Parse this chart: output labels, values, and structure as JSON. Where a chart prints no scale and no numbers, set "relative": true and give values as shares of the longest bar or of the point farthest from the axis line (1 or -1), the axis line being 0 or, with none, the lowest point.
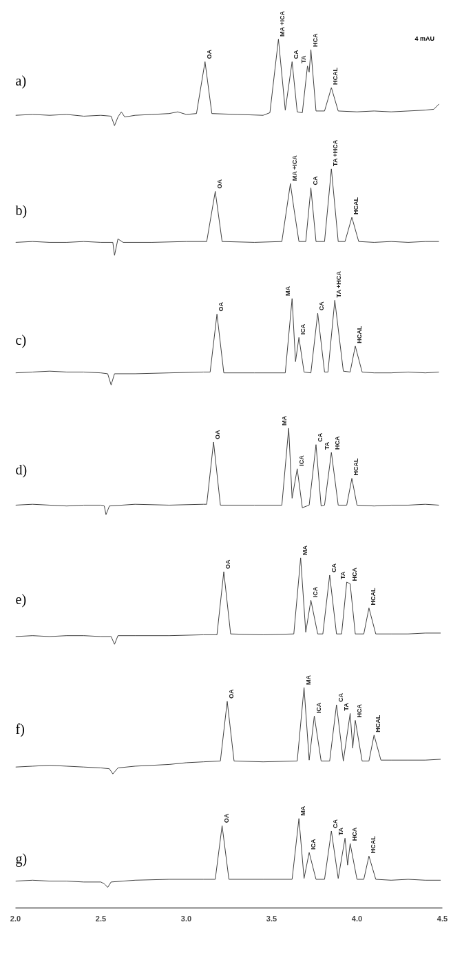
{
  "chart_data": [
    {
      "type": "line",
      "title": "a)",
      "relative": true,
      "color": "#404040",
      "xlim": [
        2.0,
        4.5
      ],
      "tick_labels": false,
      "x": [
        2.0,
        2.1,
        2.2,
        2.3,
        2.4,
        2.5,
        2.56,
        2.58,
        2.6,
        2.62,
        2.64,
        2.7,
        2.8,
        2.9,
        2.95,
        3.0,
        3.06,
        3.11,
        3.15,
        3.3,
        3.45,
        3.49,
        3.54,
        3.58,
        3.62,
        3.65,
        3.68,
        3.71,
        3.72,
        3.73,
        3.76,
        3.81,
        3.85,
        3.89,
        4.0,
        4.1,
        4.2,
        4.3,
        4.4,
        4.45,
        4.48
      ],
      "values": [
        0.12,
        0.13,
        0.12,
        0.13,
        0.11,
        0.12,
        0.11,
        0.0,
        0.1,
        0.16,
        0.1,
        0.12,
        0.13,
        0.14,
        0.16,
        0.13,
        0.14,
        0.74,
        0.14,
        0.13,
        0.12,
        0.15,
        1.0,
        0.18,
        0.74,
        0.16,
        0.15,
        0.69,
        0.62,
        0.88,
        0.17,
        0.17,
        0.44,
        0.17,
        0.16,
        0.17,
        0.16,
        0.17,
        0.18,
        0.19,
        0.25
      ],
      "annotations": [
        {
          "text": "OA",
          "x": 3.11,
          "y": 0.74
        },
        {
          "text": "MA +ICA",
          "x": 3.54,
          "y": 1.0
        },
        {
          "text": "CA",
          "x": 3.62,
          "y": 0.74
        },
        {
          "text": "TA",
          "x": 3.71,
          "y": 0.69
        },
        {
          "text": "HCA",
          "x": 3.73,
          "y": 0.88
        },
        {
          "text": "HCAL",
          "x": 3.85,
          "y": 0.44
        },
        "4 mAU"
      ]
    },
    {
      "type": "line",
      "title": "b)",
      "relative": true,
      "color": "#404040",
      "xlim": [
        2.0,
        4.5
      ],
      "tick_labels": false,
      "x": [
        2.0,
        2.1,
        2.2,
        2.3,
        2.4,
        2.5,
        2.57,
        2.58,
        2.6,
        2.63,
        2.8,
        3.0,
        3.12,
        3.17,
        3.21,
        3.4,
        3.56,
        3.61,
        3.63,
        3.66,
        3.7,
        3.73,
        3.76,
        3.81,
        3.85,
        3.89,
        3.93,
        3.97,
        4.01,
        4.1,
        4.2,
        4.3,
        4.4,
        4.48
      ],
      "values": [
        0.15,
        0.16,
        0.15,
        0.15,
        0.16,
        0.15,
        0.15,
        0.0,
        0.19,
        0.15,
        0.15,
        0.16,
        0.16,
        0.74,
        0.16,
        0.15,
        0.16,
        0.83,
        0.55,
        0.16,
        0.16,
        0.78,
        0.16,
        0.16,
        1.0,
        0.16,
        0.16,
        0.44,
        0.16,
        0.15,
        0.16,
        0.15,
        0.16,
        0.16
      ],
      "annotations": [
        {
          "text": "OA",
          "x": 3.17,
          "y": 0.74
        },
        {
          "text": "MA +ICA",
          "x": 3.61,
          "y": 0.83
        },
        {
          "text": "CA",
          "x": 3.73,
          "y": 0.78
        },
        {
          "text": "TA +HCA",
          "x": 3.85,
          "y": 1.0
        },
        {
          "text": "HCAL",
          "x": 3.97,
          "y": 0.44
        }
      ]
    },
    {
      "type": "line",
      "title": "c)",
      "relative": true,
      "color": "#404040",
      "xlim": [
        2.0,
        4.5
      ],
      "tick_labels": false,
      "x": [
        2.0,
        2.1,
        2.2,
        2.3,
        2.4,
        2.5,
        2.54,
        2.56,
        2.58,
        2.7,
        2.9,
        3.1,
        3.14,
        3.18,
        3.22,
        3.4,
        3.58,
        3.62,
        3.64,
        3.66,
        3.69,
        3.73,
        3.77,
        3.81,
        3.83,
        3.87,
        3.92,
        3.96,
        3.99,
        4.03,
        4.1,
        4.2,
        4.3,
        4.4,
        4.48
      ],
      "values": [
        0.14,
        0.15,
        0.16,
        0.15,
        0.15,
        0.14,
        0.13,
        0.0,
        0.13,
        0.13,
        0.14,
        0.15,
        0.15,
        0.82,
        0.14,
        0.14,
        0.14,
        1.0,
        0.27,
        0.55,
        0.15,
        0.14,
        0.83,
        0.15,
        0.15,
        0.98,
        0.16,
        0.15,
        0.45,
        0.15,
        0.14,
        0.14,
        0.15,
        0.14,
        0.15
      ],
      "annotations": [
        {
          "text": "OA",
          "x": 3.18,
          "y": 0.82
        },
        {
          "text": "MA",
          "x": 3.62,
          "y": 1.0
        },
        {
          "text": "ICA",
          "x": 3.66,
          "y": 0.55
        },
        {
          "text": "CA",
          "x": 3.77,
          "y": 0.83
        },
        {
          "text": "TA +HCA",
          "x": 3.87,
          "y": 0.98
        },
        {
          "text": "HCAL",
          "x": 3.99,
          "y": 0.45
        }
      ]
    },
    {
      "type": "line",
      "title": "d)",
      "relative": true,
      "color": "#404040",
      "xlim": [
        2.0,
        4.5
      ],
      "tick_labels": false,
      "x": [
        2.0,
        2.1,
        2.2,
        2.3,
        2.4,
        2.5,
        2.52,
        2.53,
        2.55,
        2.7,
        2.9,
        3.1,
        3.12,
        3.16,
        3.2,
        3.4,
        3.56,
        3.6,
        3.62,
        3.65,
        3.68,
        3.72,
        3.76,
        3.79,
        3.81,
        3.85,
        3.89,
        3.94,
        3.97,
        4.0,
        4.1,
        4.2,
        4.3,
        4.4,
        4.48
      ],
      "values": [
        0.11,
        0.12,
        0.11,
        0.1,
        0.11,
        0.11,
        0.1,
        0.0,
        0.1,
        0.12,
        0.11,
        0.12,
        0.12,
        0.84,
        0.11,
        0.11,
        0.11,
        1.0,
        0.19,
        0.53,
        0.08,
        0.11,
        0.81,
        0.1,
        0.11,
        0.72,
        0.11,
        0.11,
        0.42,
        0.11,
        0.1,
        0.11,
        0.11,
        0.12,
        0.11
      ],
      "annotations": [
        {
          "text": "OA",
          "x": 3.16,
          "y": 0.84
        },
        {
          "text": "MA",
          "x": 3.6,
          "y": 1.0
        },
        {
          "text": "ICA",
          "x": 3.65,
          "y": 0.53
        },
        {
          "text": "CA",
          "x": 3.76,
          "y": 0.81
        },
        {
          "text": "TA",
          "x": 3.85,
          "y": 0.72
        },
        {
          "text": "HCA",
          "x": 3.86,
          "y": 0.72
        },
        {
          "text": "HCAL",
          "x": 3.97,
          "y": 0.42
        }
      ]
    },
    {
      "type": "line",
      "title": "e)",
      "relative": true,
      "color": "#404040",
      "xlim": [
        2.0,
        4.5
      ],
      "tick_labels": false,
      "x": [
        2.0,
        2.1,
        2.2,
        2.3,
        2.4,
        2.5,
        2.56,
        2.58,
        2.6,
        2.7,
        2.9,
        3.1,
        3.18,
        3.22,
        3.26,
        3.45,
        3.63,
        3.67,
        3.7,
        3.73,
        3.77,
        3.8,
        3.84,
        3.88,
        3.91,
        3.94,
        3.96,
        3.99,
        4.04,
        4.07,
        4.11,
        4.2,
        4.3,
        4.4,
        4.49
      ],
      "values": [
        0.09,
        0.1,
        0.09,
        0.1,
        0.1,
        0.09,
        0.09,
        0.0,
        0.1,
        0.1,
        0.1,
        0.11,
        0.11,
        0.84,
        0.12,
        0.11,
        0.12,
        1.0,
        0.14,
        0.51,
        0.12,
        0.12,
        0.8,
        0.12,
        0.12,
        0.72,
        0.7,
        0.12,
        0.12,
        0.42,
        0.12,
        0.12,
        0.12,
        0.13,
        0.13
      ],
      "annotations": [
        {
          "text": "OA",
          "x": 3.22,
          "y": 0.84
        },
        {
          "text": "MA",
          "x": 3.67,
          "y": 1.0
        },
        {
          "text": "ICA",
          "x": 3.73,
          "y": 0.51
        },
        {
          "text": "CA",
          "x": 3.84,
          "y": 0.8
        },
        {
          "text": "TA",
          "x": 3.94,
          "y": 0.72
        },
        {
          "text": "HCA",
          "x": 3.96,
          "y": 0.7
        },
        {
          "text": "HCAL",
          "x": 4.07,
          "y": 0.42
        }
      ]
    },
    {
      "type": "line",
      "title": "f)",
      "relative": true,
      "color": "#404040",
      "xlim": [
        2.0,
        4.5
      ],
      "tick_labels": false,
      "x": [
        2.0,
        2.1,
        2.2,
        2.3,
        2.4,
        2.5,
        2.55,
        2.57,
        2.6,
        2.7,
        2.9,
        3.0,
        3.1,
        3.2,
        3.24,
        3.28,
        3.45,
        3.65,
        3.69,
        3.72,
        3.75,
        3.79,
        3.84,
        3.88,
        3.92,
        3.96,
        3.975,
        3.99,
        4.03,
        4.07,
        4.1,
        4.14,
        4.2,
        4.3,
        4.4,
        4.49
      ],
      "values": [
        0.08,
        0.09,
        0.1,
        0.09,
        0.08,
        0.07,
        0.06,
        0.0,
        0.07,
        0.09,
        0.11,
        0.13,
        0.14,
        0.15,
        0.84,
        0.15,
        0.14,
        0.15,
        1.0,
        0.16,
        0.67,
        0.15,
        0.15,
        0.8,
        0.15,
        0.7,
        0.3,
        0.62,
        0.15,
        0.15,
        0.45,
        0.16,
        0.16,
        0.16,
        0.16,
        0.17
      ],
      "annotations": [
        {
          "text": "OA",
          "x": 3.24,
          "y": 0.84
        },
        {
          "text": "MA",
          "x": 3.69,
          "y": 1.0
        },
        {
          "text": "ICA",
          "x": 3.75,
          "y": 0.67
        },
        {
          "text": "CA",
          "x": 3.88,
          "y": 0.8
        },
        {
          "text": "TA",
          "x": 3.96,
          "y": 0.7
        },
        {
          "text": "HCA",
          "x": 3.99,
          "y": 0.62
        },
        {
          "text": "HCAL",
          "x": 4.1,
          "y": 0.45
        }
      ]
    },
    {
      "type": "line",
      "title": "g)",
      "relative": true,
      "color": "#404040",
      "xlim": [
        2.0,
        4.5
      ],
      "tick_labels": "x",
      "xticks": [
        {
          "value": 2.0,
          "label": "2.0"
        },
        2.5,
        {
          "value": 3.0,
          "label": "3.0"
        },
        3.5,
        {
          "value": 4.0,
          "label": "4.0"
        },
        4.5
      ],
      "x": [
        2.0,
        2.1,
        2.2,
        2.3,
        2.4,
        2.5,
        2.52,
        2.54,
        2.56,
        2.7,
        2.9,
        3.1,
        3.17,
        3.21,
        3.25,
        3.45,
        3.62,
        3.66,
        3.69,
        3.72,
        3.76,
        3.81,
        3.85,
        3.89,
        3.93,
        3.945,
        3.96,
        4.0,
        4.04,
        4.07,
        4.11,
        4.2,
        4.3,
        4.4,
        4.49
      ],
      "values": [
        0.3,
        0.31,
        0.3,
        0.3,
        0.29,
        0.29,
        0.27,
        0.23,
        0.29,
        0.31,
        0.32,
        0.32,
        0.32,
        0.92,
        0.32,
        0.32,
        0.32,
        1.0,
        0.33,
        0.62,
        0.32,
        0.32,
        0.86,
        0.33,
        0.78,
        0.48,
        0.72,
        0.32,
        0.32,
        0.58,
        0.32,
        0.31,
        0.32,
        0.31,
        0.31
      ],
      "annotations": [
        {
          "text": "OA",
          "x": 3.21,
          "y": 0.92
        },
        {
          "text": "MA",
          "x": 3.66,
          "y": 1.0
        },
        {
          "text": "ICA",
          "x": 3.72,
          "y": 0.62
        },
        {
          "text": "CA",
          "x": 3.85,
          "y": 0.86
        },
        {
          "text": "TA",
          "x": 3.93,
          "y": 0.78
        },
        {
          "text": "HCA",
          "x": 3.96,
          "y": 0.72
        },
        {
          "text": "HCAL",
          "x": 4.07,
          "y": 0.58
        }
      ]
    }
  ]
}
